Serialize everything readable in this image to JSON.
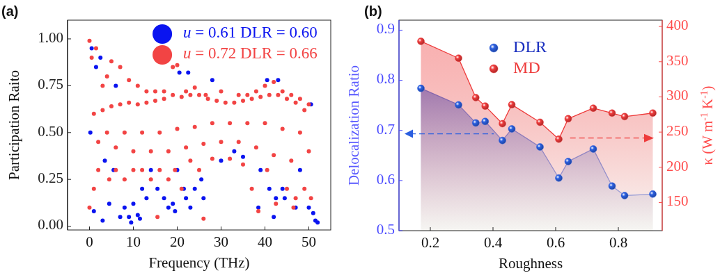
{
  "chart_data": [
    {
      "type": "scatter",
      "title": "(a)",
      "xlabel": "Frequency (THz)",
      "ylabel": "Participation Raito",
      "xlim": [
        -5,
        55
      ],
      "ylim": [
        -0.02,
        1.1
      ],
      "xticks": [
        0,
        10,
        20,
        30,
        40,
        50
      ],
      "yticks": [
        {
          "value": 0,
          "label": "0.00"
        },
        {
          "value": 0.25,
          "label": "0.25"
        },
        {
          "value": 0.5,
          "label": "0.50"
        },
        {
          "value": 0.75,
          "label": "0.75"
        },
        {
          "value": 1,
          "label": "1.00"
        }
      ],
      "legend": "top right",
      "grid": false,
      "series": [
        {
          "name": "u = 0.61 DLR = 0.60",
          "color": "#0a14f0",
          "x": [
            0.2,
            0.5,
            1,
            1.5,
            2.5,
            3,
            3.5,
            4.5,
            5.5,
            6,
            7,
            8,
            9,
            9.5,
            10,
            11,
            11.5,
            12,
            13,
            14,
            15.5,
            17,
            18,
            19,
            19.5,
            20,
            20.5,
            21.5,
            22,
            22.5,
            23,
            24,
            25.5,
            26,
            28,
            30,
            33,
            35,
            38.5,
            39,
            40.5,
            41,
            42,
            42.5,
            43,
            44,
            44.5,
            47,
            48,
            50,
            50.5,
            51,
            51.5,
            52
          ],
          "values": [
            0.5,
            0.95,
            0.08,
            0.85,
            0.9,
            0.03,
            0.35,
            0.12,
            0.3,
            0.75,
            0.05,
            0.1,
            0.05,
            0.02,
            0.12,
            0.06,
            0.04,
            0.2,
            0.15,
            0.3,
            0.2,
            0.15,
            0.1,
            0.12,
            0.08,
            0.3,
            0.82,
            0.2,
            0.15,
            0.82,
            0.1,
            0.2,
            0.25,
            0.15,
            0.78,
            0.35,
            0.4,
            0.37,
            0.1,
            0.3,
            0.78,
            0.2,
            0.05,
            0.15,
            0.78,
            0.2,
            0.15,
            0.1,
            0.3,
            0.1,
            0.65,
            0.07,
            0.03,
            0.02
          ]
        },
        {
          "name": "u = 0.72 DLR = 0.66",
          "color": "#f24444",
          "x": [
            0,
            0,
            0.5,
            1,
            1.5,
            2,
            3,
            4,
            4.5,
            5,
            6,
            7,
            8,
            9,
            10,
            11,
            12,
            13,
            14,
            15,
            15.5,
            16,
            17,
            18,
            19,
            19.5,
            20,
            21,
            22,
            23,
            24,
            25,
            26,
            26.5,
            28,
            30,
            32,
            34,
            35,
            36,
            37,
            38,
            38.5,
            40,
            40.5,
            42,
            42.5,
            44,
            45,
            46,
            46.5,
            47,
            48,
            49,
            50,
            50.5,
            1,
            3,
            5,
            7,
            9,
            11,
            13,
            15,
            17,
            19,
            21,
            23,
            25,
            27,
            29,
            31,
            33,
            35,
            37,
            39,
            41,
            43,
            45,
            47,
            49,
            2,
            6,
            10,
            14,
            18,
            22,
            26,
            30,
            34,
            38,
            42,
            46,
            50,
            4,
            8,
            12,
            16,
            20,
            24,
            28,
            32,
            36,
            40,
            44,
            48
          ],
          "values": [
            0.99,
            0.1,
            0.9,
            0.2,
            0.95,
            0.3,
            0.75,
            0.8,
            0.25,
            0.88,
            0.3,
            0.85,
            0.25,
            0.78,
            0.3,
            0.75,
            0.3,
            0.72,
            0.25,
            0.72,
            0.05,
            0.3,
            0.72,
            0.25,
            0.85,
            0.3,
            0.86,
            0.2,
            0.72,
            0.35,
            0.74,
            0.3,
            0.04,
            0.7,
            0.36,
            0.72,
            0.36,
            0.7,
            0.33,
            0.7,
            0.2,
            0.72,
            0.08,
            0.75,
            0.3,
            0.77,
            0.12,
            0.72,
            0.2,
            0.7,
            0.1,
            0.15,
            0.68,
            0.2,
            0.65,
            0.15,
            0.6,
            0.62,
            0.64,
            0.65,
            0.66,
            0.65,
            0.66,
            0.67,
            0.68,
            0.7,
            0.69,
            0.7,
            0.7,
            0.68,
            0.67,
            0.66,
            0.66,
            0.67,
            0.68,
            0.69,
            0.7,
            0.7,
            0.68,
            0.66,
            0.62,
            0.45,
            0.42,
            0.4,
            0.4,
            0.4,
            0.42,
            0.44,
            0.45,
            0.45,
            0.42,
            0.38,
            0.35,
            0.4,
            0.5,
            0.5,
            0.5,
            0.5,
            0.52,
            0.53,
            0.55,
            0.55,
            0.55,
            0.55,
            0.52,
            0.5
          ]
        }
      ]
    },
    {
      "type": "area",
      "title": "(b)",
      "xlabel": "Roughness",
      "ylabel": "Delocalization Ratio",
      "y2label": "κ (W m$^{-1}$ K$^{-1}$)",
      "xlim": [
        0.1,
        0.94
      ],
      "ylim": [
        0.5,
        0.92
      ],
      "y2lim": [
        110,
        409
      ],
      "xticks": [
        0.2,
        0.4,
        0.6,
        0.8
      ],
      "yticks": [
        0.5,
        0.6,
        0.7,
        0.8,
        0.9
      ],
      "y2ticks": [
        150,
        200,
        250,
        300,
        350,
        400
      ],
      "legend": "top",
      "marker": "circle",
      "grid": false,
      "x": [
        0.17,
        0.29,
        0.345,
        0.375,
        0.43,
        0.46,
        0.55,
        0.61,
        0.64,
        0.72,
        0.78,
        0.82,
        0.91
      ],
      "series": [
        {
          "name": "DLR",
          "color": "#2b5fe0",
          "axis": "y",
          "values": [
            0.784,
            0.751,
            0.715,
            0.718,
            0.68,
            0.703,
            0.667,
            0.605,
            0.638,
            0.663,
            0.589,
            0.57,
            0.573
          ]
        },
        {
          "name": "MD",
          "color": "#ee3b3b",
          "axis": "y2",
          "values": [
            379,
            355,
            299,
            287,
            262,
            289,
            264,
            240,
            269,
            284,
            277,
            272,
            277
          ]
        }
      ]
    }
  ]
}
